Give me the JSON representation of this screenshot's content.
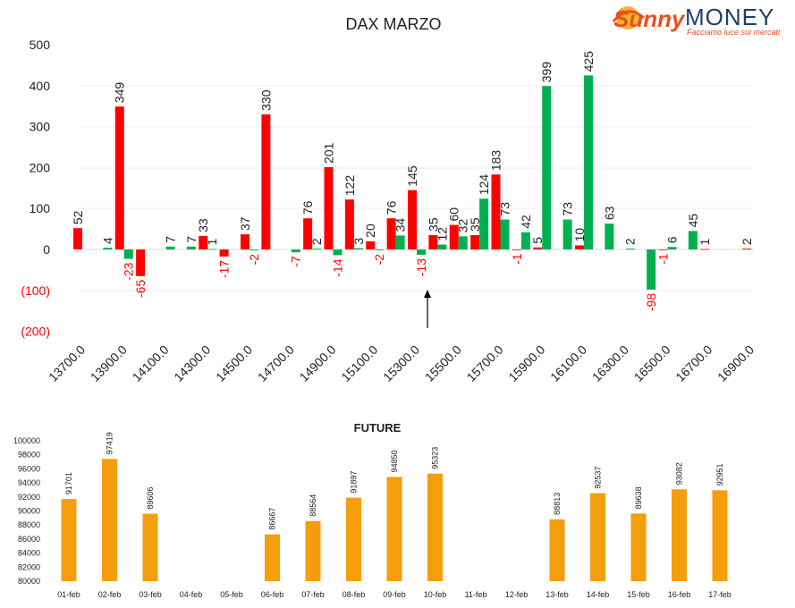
{
  "logo": {
    "brand_script": "Sunny",
    "brand_caps": "MONEY",
    "tagline": "Facciamo luce sui mercati"
  },
  "chart_data": [
    {
      "type": "bar",
      "title": "DAX MARZO",
      "xlabel": "",
      "ylabel": "",
      "ylim": [
        -200,
        500
      ],
      "y_ticks": [
        "500",
        "400",
        "300",
        "200",
        "100",
        "0",
        "(100)",
        "(200)"
      ],
      "x_ticks": [
        "13700.0",
        "13900.0",
        "14100.0",
        "14300.0",
        "14500.0",
        "14700.0",
        "14900.0",
        "15100.0",
        "15300.0",
        "15500.0",
        "15700.0",
        "15900.0",
        "16100.0",
        "16300.0",
        "16500.0",
        "16700.0",
        "16900.0"
      ],
      "grid": true,
      "marker": {
        "at_strike": 15500,
        "direction": "up"
      },
      "colors": {
        "red": "#ff0000",
        "green": "#00b050",
        "negative_label": "#ff0000"
      },
      "series": [
        {
          "color": "red",
          "strikes": [
            13700,
            13900,
            14000,
            14300,
            14400,
            14500,
            14600,
            14800,
            14900,
            15000,
            15100,
            15200,
            15300,
            15400,
            15500,
            15600,
            15700,
            15800,
            15900,
            16100,
            16500,
            16700,
            16900
          ],
          "values": [
            52,
            349,
            -65,
            33,
            -17,
            37,
            330,
            76,
            201,
            122,
            20,
            76,
            145,
            35,
            60,
            35,
            183,
            -1,
            5,
            10,
            -1,
            1,
            2
          ]
        },
        {
          "color": "green",
          "strikes": [
            13800,
            13900,
            14100,
            14200,
            14300,
            14500,
            14700,
            14800,
            14900,
            15000,
            15100,
            15200,
            15300,
            15400,
            15500,
            15600,
            15700,
            15800,
            15900,
            16000,
            16100,
            16200,
            16300,
            16400,
            16500,
            16600
          ],
          "values": [
            4,
            -23,
            7,
            7,
            1,
            -2,
            -7,
            2,
            -14,
            3,
            -2,
            34,
            -13,
            12,
            32,
            124,
            73,
            42,
            399,
            73,
            425,
            63,
            2,
            -98,
            6,
            45
          ]
        }
      ]
    },
    {
      "type": "bar",
      "title": "FUTURE",
      "xlabel": "",
      "ylabel": "",
      "ylim": [
        80000,
        100000
      ],
      "y_ticks": [
        "100000",
        "98000",
        "96000",
        "94000",
        "92000",
        "90000",
        "88000",
        "86000",
        "84000",
        "82000",
        "80000"
      ],
      "categories": [
        "01-feb",
        "02-feb",
        "03-feb",
        "04-feb",
        "05-feb",
        "06-feb",
        "07-feb",
        "08-feb",
        "09-feb",
        "10-feb",
        "11-feb",
        "12-feb",
        "13-feb",
        "14-feb",
        "15-feb",
        "16-feb",
        "17-feb"
      ],
      "values": [
        91701,
        97419,
        89606,
        null,
        null,
        86667,
        88564,
        91897,
        94850,
        95323,
        null,
        null,
        88813,
        92537,
        89638,
        93082,
        92951
      ],
      "grid": false,
      "colors": {
        "bar": "#f59e0b"
      }
    }
  ]
}
